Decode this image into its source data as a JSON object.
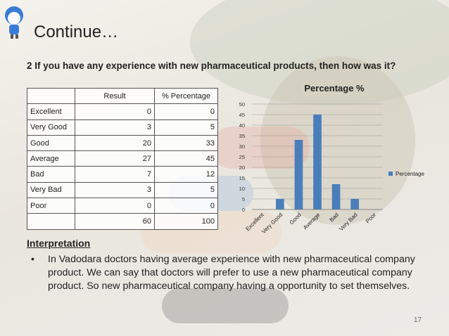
{
  "slide_title": "Continue…",
  "question": "2 If you have any experience with new pharmaceutical products, then how was it?",
  "table": {
    "headers": [
      "Result",
      "% Percentage"
    ],
    "rows": [
      [
        "Excellent",
        0,
        0
      ],
      [
        "Very Good",
        3,
        5
      ],
      [
        "Good",
        20,
        33
      ],
      [
        "Average",
        27,
        45
      ],
      [
        "Bad",
        7,
        12
      ],
      [
        "Very Bad",
        3,
        5
      ],
      [
        "Poor",
        0,
        0
      ]
    ],
    "total": [
      60,
      100
    ]
  },
  "chart_data": {
    "type": "bar",
    "title": "Percentage %",
    "categories": [
      "Excellent",
      "Very Good",
      "Good",
      "Average",
      "Bad",
      "Very Bad",
      "Poor"
    ],
    "series": [
      {
        "name": "Percentage",
        "color": "#4a7ebb",
        "values": [
          0,
          5,
          33,
          45,
          12,
          5,
          0
        ]
      }
    ],
    "ylim": [
      0,
      50
    ],
    "yticks": [
      0,
      5,
      10,
      15,
      20,
      25,
      30,
      35,
      40,
      45,
      50
    ],
    "grid": true,
    "legend": "right"
  },
  "interpretation_heading": "Interpretation",
  "bullet": "In Vadodara doctors having average experience with new pharmaceutical company product. We can say that doctors will prefer to use a new pharmaceutical company product. So new pharmaceutical company having a opportunity to set themselves.",
  "page_number": "17"
}
